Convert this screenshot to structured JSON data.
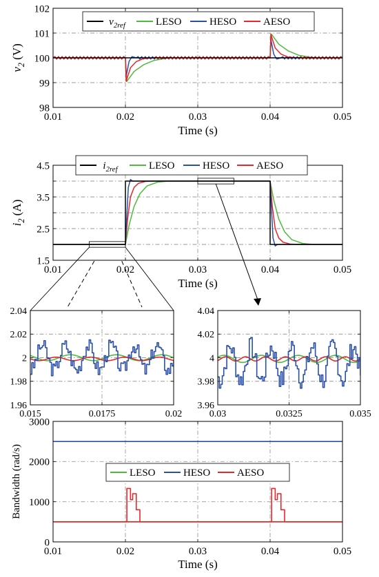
{
  "colors": {
    "ref": "#000000",
    "leso": "#4cbb3a",
    "heso": "#2a4fa8",
    "aeso": "#e8262a",
    "grid": "#9a9a9a"
  },
  "chart_data": [
    {
      "id": "v2",
      "type": "line",
      "ylabel": "v_2 (V)",
      "ylabel_main": "v",
      "ylabel_sub": "2",
      "ylabel_unit": " (V)",
      "xlabel": "Time (s)",
      "xlim": [
        0.01,
        0.05
      ],
      "ylim": [
        98,
        102
      ],
      "xticks": [
        "0.01",
        "0.02",
        "0.03",
        "0.04",
        "0.05"
      ],
      "yticks": [
        "98",
        "99",
        "100",
        "101",
        "102"
      ],
      "grid": true,
      "legend": {
        "placement": "top-center",
        "entries": [
          "v2ref",
          "LESO",
          "HESO",
          "AESO"
        ]
      },
      "legend_ref_main": "v",
      "legend_ref_sub": "2ref",
      "series": [
        {
          "name": "v2ref",
          "color_key": "ref",
          "x": [
            0.01,
            0.05
          ],
          "y": [
            100,
            100
          ]
        },
        {
          "name": "LESO",
          "color_key": "leso",
          "x": [
            0.01,
            0.02,
            0.0202,
            0.0212,
            0.0225,
            0.024,
            0.026,
            0.04,
            0.0402,
            0.0412,
            0.0425,
            0.044,
            0.046,
            0.05
          ],
          "y": [
            100,
            100,
            99.05,
            99.45,
            99.72,
            99.9,
            100,
            100,
            100.95,
            100.55,
            100.28,
            100.1,
            100,
            100
          ]
        },
        {
          "name": "HESO",
          "color_key": "heso",
          "x": [
            0.01,
            0.02,
            0.0201,
            0.0205,
            0.0209,
            0.0215,
            0.04,
            0.0401,
            0.0405,
            0.0409,
            0.0415,
            0.05
          ],
          "y": [
            100,
            100,
            99.25,
            99.85,
            100.05,
            100,
            100,
            100.75,
            100.15,
            99.95,
            100,
            100
          ]
        },
        {
          "name": "AESO",
          "color_key": "aeso",
          "x": [
            0.01,
            0.02,
            0.0201,
            0.0207,
            0.0215,
            0.0225,
            0.024,
            0.04,
            0.0401,
            0.0407,
            0.0415,
            0.0425,
            0.044,
            0.05
          ],
          "y": [
            100,
            100,
            99.05,
            99.6,
            99.85,
            99.97,
            100,
            100,
            100.95,
            100.4,
            100.15,
            100.03,
            100,
            100
          ]
        }
      ],
      "ripple_note": "steady-state ripple of about +/-0.05 V on all estimator curves"
    },
    {
      "id": "i2",
      "type": "line",
      "ylabel": "i_2 (A)",
      "ylabel_main": "i",
      "ylabel_sub": "2",
      "ylabel_unit": " (A)",
      "xlabel": "Time (s)",
      "xlim": [
        0.01,
        0.05
      ],
      "ylim": [
        1.5,
        4.5
      ],
      "xticks": [
        "0.01",
        "0.02",
        "0.03",
        "0.04",
        "0.05"
      ],
      "yticks": [
        "1.5",
        "2",
        "2.5",
        "3",
        "3.5",
        "4",
        "4.5"
      ],
      "ytick_values": [
        1.5,
        2,
        2.5,
        3,
        3.5,
        4,
        4.5
      ],
      "ytick_labels_shown": [
        "1.5",
        "2.5",
        "3.5",
        "4.5"
      ],
      "grid": true,
      "legend": {
        "placement": "top-center",
        "entries": [
          "i2ref",
          "LESO",
          "HESO",
          "AESO"
        ]
      },
      "legend_ref_main": "i",
      "legend_ref_sub": "2ref",
      "series": [
        {
          "name": "i2ref",
          "color_key": "ref",
          "x": [
            0.01,
            0.02,
            0.02,
            0.04,
            0.04,
            0.05
          ],
          "y": [
            2,
            2,
            4,
            4,
            2,
            2
          ]
        },
        {
          "name": "LESO",
          "color_key": "leso",
          "x": [
            0.01,
            0.02,
            0.0205,
            0.0212,
            0.022,
            0.023,
            0.0245,
            0.026,
            0.04,
            0.0405,
            0.0412,
            0.042,
            0.043,
            0.0445,
            0.046,
            0.05
          ],
          "y": [
            2,
            2,
            2.6,
            3.2,
            3.6,
            3.85,
            3.97,
            4,
            4,
            3.4,
            2.8,
            2.4,
            2.15,
            2.03,
            2,
            2
          ]
        },
        {
          "name": "HESO",
          "color_key": "heso",
          "x": [
            0.01,
            0.02,
            0.0201,
            0.0204,
            0.0207,
            0.021,
            0.04,
            0.0401,
            0.0404,
            0.0407,
            0.041,
            0.05
          ],
          "y": [
            2,
            2,
            2.5,
            3.8,
            4.05,
            4,
            4,
            3.5,
            2.2,
            1.95,
            2,
            2
          ]
        },
        {
          "name": "AESO",
          "color_key": "aeso",
          "x": [
            0.01,
            0.02,
            0.0203,
            0.0207,
            0.0212,
            0.0218,
            0.0228,
            0.024,
            0.04,
            0.0403,
            0.0407,
            0.0412,
            0.0418,
            0.0428,
            0.044,
            0.05
          ],
          "y": [
            2,
            2,
            2.8,
            3.5,
            3.8,
            3.93,
            3.99,
            4,
            4,
            3.2,
            2.5,
            2.2,
            2.07,
            2.01,
            2,
            2
          ]
        }
      ]
    },
    {
      "id": "zoom1",
      "type": "line",
      "xlim": [
        0.015,
        0.02
      ],
      "ylim": [
        1.96,
        2.04
      ],
      "xticks": [
        "0.015",
        "0.0175",
        "0.02"
      ],
      "xtick_values": [
        0.015,
        0.0175,
        0.02
      ],
      "yticks": [
        "1.96",
        "1.98",
        "2",
        "2.02",
        "2.04"
      ],
      "ytick_values": [
        1.96,
        1.98,
        2.0,
        2.02,
        2.04
      ],
      "grid": true,
      "series": [
        {
          "name": "HESO",
          "color_key": "heso",
          "kind": "staircase",
          "center": 2.0,
          "amplitude": 0.014,
          "period": 0.0008,
          "seed": 3
        },
        {
          "name": "LESO",
          "color_key": "leso",
          "kind": "smooth",
          "center": 2.0,
          "amplitude": 0.0025,
          "period": 0.0016
        },
        {
          "name": "AESO",
          "color_key": "aeso",
          "kind": "smooth",
          "center": 1.999,
          "amplitude": 0.0015,
          "period": 0.0012
        }
      ]
    },
    {
      "id": "zoom2",
      "type": "line",
      "xlim": [
        0.03,
        0.035
      ],
      "ylim": [
        3.96,
        4.04
      ],
      "xticks": [
        "0.03",
        "0.0325",
        "0.035"
      ],
      "xtick_values": [
        0.03,
        0.0325,
        0.035
      ],
      "yticks": [
        "3.96",
        "3.98",
        "4",
        "4.02",
        "4.04"
      ],
      "ytick_values": [
        3.96,
        3.98,
        4.0,
        4.02,
        4.04
      ],
      "grid": true,
      "series": [
        {
          "name": "HESO",
          "color_key": "heso",
          "kind": "staircase",
          "center": 3.995,
          "amplitude": 0.019,
          "period": 0.00072,
          "seed": 7
        },
        {
          "name": "LESO",
          "color_key": "leso",
          "kind": "smooth",
          "center": 3.999,
          "amplitude": 0.003,
          "period": 0.0013
        },
        {
          "name": "AESO",
          "color_key": "aeso",
          "kind": "smooth",
          "center": 3.999,
          "amplitude": 0.0018,
          "period": 0.0007
        }
      ]
    },
    {
      "id": "bw",
      "type": "line",
      "ylabel": "Bandwidth (rad/s)",
      "xlabel": "Time (s)",
      "xlim": [
        0.01,
        0.05
      ],
      "ylim": [
        0,
        3000
      ],
      "xticks": [
        "0.01",
        "0.02",
        "0.03",
        "0.04",
        "0.05"
      ],
      "yticks": [
        "0",
        "1000",
        "2000",
        "3000"
      ],
      "ytick_values": [
        0,
        1000,
        2000,
        3000
      ],
      "grid": true,
      "legend": {
        "placement": "center",
        "entries": [
          "LESO",
          "HESO",
          "AESO"
        ]
      },
      "series": [
        {
          "name": "LESO",
          "color_key": "leso",
          "x": [
            0.01,
            0.05
          ],
          "y": [
            500,
            500
          ]
        },
        {
          "name": "HESO",
          "color_key": "heso",
          "x": [
            0.01,
            0.05
          ],
          "y": [
            2500,
            2500
          ]
        },
        {
          "name": "AESO",
          "color_key": "aeso",
          "x": [
            0.01,
            0.0202,
            0.0202,
            0.0207,
            0.0207,
            0.021,
            0.021,
            0.0215,
            0.0215,
            0.022,
            0.022,
            0.05
          ],
          "y": [
            500,
            500,
            1330,
            1330,
            1050,
            1050,
            1200,
            1200,
            800,
            800,
            500,
            500
          ]
        },
        {
          "name": "AESO",
          "color_key": "aeso",
          "x": [
            0.01,
            0.0402,
            0.0402,
            0.0407,
            0.0407,
            0.041,
            0.041,
            0.0415,
            0.0415,
            0.042,
            0.042,
            0.05
          ],
          "y": [
            500,
            500,
            1330,
            1330,
            1050,
            1050,
            1200,
            1200,
            800,
            800,
            500,
            500
          ]
        }
      ]
    }
  ]
}
